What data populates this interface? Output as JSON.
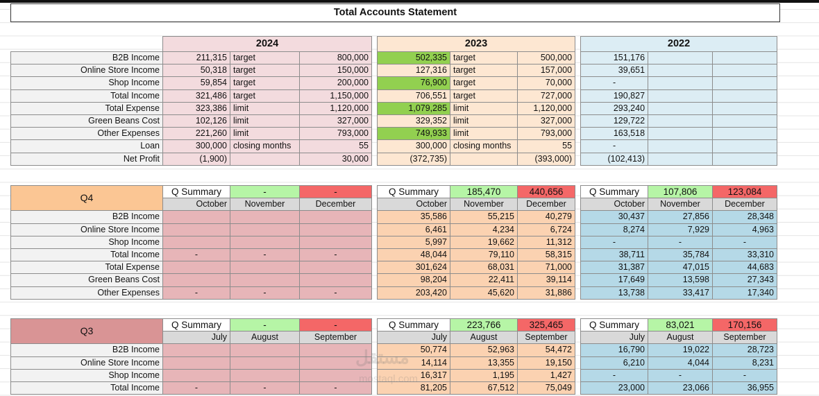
{
  "title": "Total Accounts Statement",
  "years": [
    "2024",
    "2023",
    "2022"
  ],
  "row_labels": [
    "B2B Income",
    "Online Store Income",
    "Shop Income",
    "Total Income",
    "Total Expense",
    "Green Beans Cost",
    "Other Expenses",
    "Loan",
    "Net Profit"
  ],
  "y2024": {
    "values": [
      "211,315",
      "50,318",
      "59,854",
      "321,486",
      "323,386",
      "102,126",
      "221,260",
      "300,000",
      "(1,900)"
    ],
    "kinds": [
      "target",
      "target",
      "target",
      "target",
      "limit",
      "limit",
      "limit",
      "closing months",
      ""
    ],
    "goals": [
      "800,000",
      "150,000",
      "200,000",
      "1,150,000",
      "1,120,000",
      "327,000",
      "793,000",
      "55",
      "30,000"
    ]
  },
  "y2023": {
    "values": [
      "502,335",
      "127,316",
      "76,900",
      "706,551",
      "1,079,285",
      "329,352",
      "749,933",
      "300,000",
      "(372,735)"
    ],
    "kinds": [
      "target",
      "target",
      "target",
      "target",
      "limit",
      "limit",
      "limit",
      "closing months",
      ""
    ],
    "goals": [
      "500,000",
      "157,000",
      "70,000",
      "727,000",
      "1,120,000",
      "327,000",
      "793,000",
      "55",
      "(393,000)"
    ]
  },
  "y2022": {
    "values": [
      "151,176",
      "39,651",
      "-",
      "190,827",
      "293,240",
      "129,722",
      "163,518",
      "-",
      "(102,413)"
    ]
  },
  "q_row_labels": [
    "B2B Income",
    "Online Store Income",
    "Shop Income",
    "Total Income",
    "Total Expense",
    "Green Beans Cost",
    "Other Expenses"
  ],
  "q4": {
    "label": "Q4",
    "summary_label": "Q Summary",
    "months": [
      "October",
      "November",
      "December"
    ],
    "s2024": {
      "pos": "-",
      "neg": "-"
    },
    "s2023": {
      "pos": "185,470",
      "neg": "440,656"
    },
    "s2022": {
      "pos": "107,806",
      "neg": "123,084"
    },
    "d2024": [
      [
        "",
        "",
        ""
      ],
      [
        "",
        "",
        ""
      ],
      [
        "",
        "",
        ""
      ],
      [
        "-",
        "-",
        "-"
      ],
      [
        "",
        "",
        ""
      ],
      [
        "",
        "",
        ""
      ],
      [
        "-",
        "-",
        "-"
      ]
    ],
    "d2023": [
      [
        "35,586",
        "55,215",
        "40,279"
      ],
      [
        "6,461",
        "4,234",
        "6,724"
      ],
      [
        "5,997",
        "19,662",
        "11,312"
      ],
      [
        "48,044",
        "79,110",
        "58,315"
      ],
      [
        "301,624",
        "68,031",
        "71,000"
      ],
      [
        "98,204",
        "22,411",
        "39,114"
      ],
      [
        "203,420",
        "45,620",
        "31,886"
      ]
    ],
    "d2022": [
      [
        "30,437",
        "27,856",
        "28,348"
      ],
      [
        "8,274",
        "7,929",
        "4,963"
      ],
      [
        "-",
        "-",
        "-"
      ],
      [
        "38,711",
        "35,784",
        "33,310"
      ],
      [
        "31,387",
        "47,015",
        "44,683"
      ],
      [
        "17,649",
        "13,598",
        "27,343"
      ],
      [
        "13,738",
        "33,417",
        "17,340"
      ]
    ]
  },
  "q3": {
    "label": "Q3",
    "summary_label": "Q Summary",
    "months": [
      "July",
      "August",
      "September"
    ],
    "s2024": {
      "pos": "-",
      "neg": "-"
    },
    "s2023": {
      "pos": "223,766",
      "neg": "325,465"
    },
    "s2022": {
      "pos": "83,021",
      "neg": "170,156"
    },
    "d2024": [
      [
        "",
        "",
        ""
      ],
      [
        "",
        "",
        ""
      ],
      [
        "",
        "",
        ""
      ],
      [
        "-",
        "-",
        "-"
      ]
    ],
    "d2023": [
      [
        "50,774",
        "52,963",
        "54,472"
      ],
      [
        "14,114",
        "13,355",
        "19,150"
      ],
      [
        "16,317",
        "1,195",
        "1,427"
      ],
      [
        "81,205",
        "67,512",
        "75,049"
      ]
    ],
    "d2022": [
      [
        "16,790",
        "19,022",
        "28,723"
      ],
      [
        "6,210",
        "4,044",
        "8,231"
      ],
      [
        "-",
        "-",
        "-"
      ],
      [
        "23,000",
        "23,066",
        "36,955"
      ]
    ]
  },
  "watermark": "مستقل",
  "watermark_sub": "mostaql.com",
  "colors": {
    "pink": "#f3dbde",
    "peach": "#fde7d2",
    "blue": "#dcedf4",
    "green": "#92d050",
    "red": "#f46767",
    "q4": "#fbc694",
    "q3": "#d99495"
  }
}
